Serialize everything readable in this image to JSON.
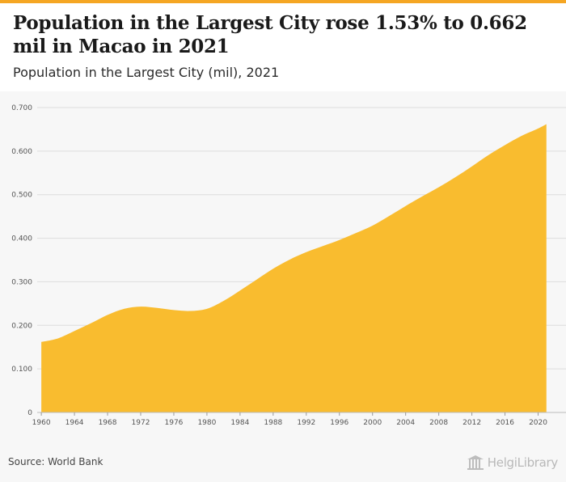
{
  "header": {
    "title": "Population in the Largest City rose 1.53% to 0.662 mil in Macao in 2021",
    "subtitle": "Population in the Largest City (mil), 2021"
  },
  "footer": {
    "source": "Source: World Bank",
    "logo_text": "HelgiLibrary"
  },
  "colors": {
    "area_fill": "#f9bc2f",
    "grid": "#dddddd",
    "accent_bar": "#f5a623"
  },
  "chart_data": {
    "type": "area",
    "title": "Population in the Largest City rose 1.53% to 0.662 mil in Macao in 2021",
    "subtitle": "Population in the Largest City (mil), 2021",
    "xlabel": "",
    "ylabel": "",
    "ylim": [
      0,
      0.7
    ],
    "y_ticks": [
      "0",
      "0.100",
      "0.200",
      "0.300",
      "0.400",
      "0.500",
      "0.600",
      "0.700"
    ],
    "x_ticks": [
      "1960",
      "1964",
      "1968",
      "1972",
      "1976",
      "1980",
      "1984",
      "1988",
      "1992",
      "1996",
      "2000",
      "2004",
      "2008",
      "2012",
      "2016",
      "2020"
    ],
    "grid": true,
    "x": [
      1960,
      1962,
      1964,
      1966,
      1968,
      1970,
      1972,
      1974,
      1976,
      1978,
      1980,
      1982,
      1984,
      1986,
      1988,
      1990,
      1992,
      1994,
      1996,
      1998,
      2000,
      2002,
      2004,
      2006,
      2008,
      2010,
      2012,
      2014,
      2016,
      2018,
      2020,
      2021
    ],
    "values": [
      0.162,
      0.17,
      0.187,
      0.205,
      0.224,
      0.238,
      0.243,
      0.24,
      0.235,
      0.233,
      0.238,
      0.256,
      0.28,
      0.305,
      0.33,
      0.351,
      0.368,
      0.382,
      0.396,
      0.412,
      0.429,
      0.451,
      0.474,
      0.496,
      0.517,
      0.54,
      0.565,
      0.591,
      0.614,
      0.635,
      0.652,
      0.662
    ]
  }
}
